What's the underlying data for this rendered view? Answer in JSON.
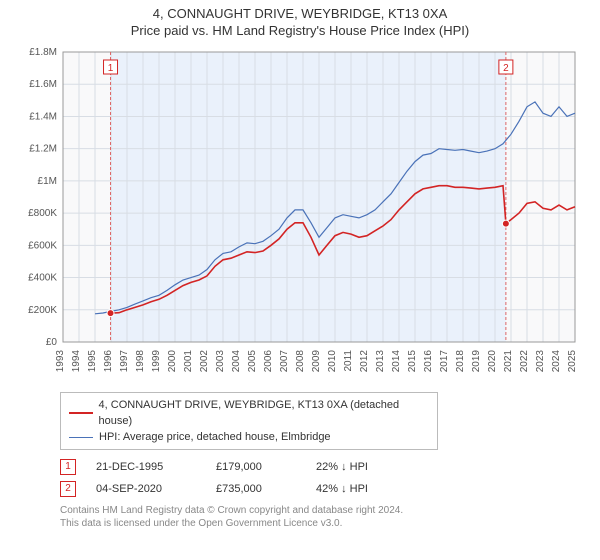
{
  "title_line1": "4, CONNAUGHT DRIVE, WEYBRIDGE, KT13 0XA",
  "title_line2": "Price paid vs. HM Land Registry's House Price Index (HPI)",
  "chart": {
    "type": "line",
    "background_color": "#ffffff",
    "plot_bg_color": "#f9f9fa",
    "grid_color": "#d8dde4",
    "x_label_years": [
      1993,
      1994,
      1995,
      1996,
      1997,
      1998,
      1999,
      2000,
      2001,
      2002,
      2003,
      2004,
      2005,
      2006,
      2007,
      2008,
      2009,
      2010,
      2011,
      2012,
      2013,
      2014,
      2015,
      2016,
      2017,
      2018,
      2019,
      2020,
      2021,
      2022,
      2023,
      2024,
      2025
    ],
    "y_min": 0,
    "y_max": 1800000,
    "y_tick_step": 200000,
    "y_tick_labels": [
      "£0",
      "£200K",
      "£400K",
      "£600K",
      "£800K",
      "£1M",
      "£1.2M",
      "£1.4M",
      "£1.6M",
      "£1.8M"
    ],
    "band": {
      "start_year": 1995.97,
      "end_year": 2020.68,
      "fill": "#eaf1fb"
    },
    "series": [
      {
        "name": "price_paid",
        "label": "4, CONNAUGHT DRIVE, WEYBRIDGE, KT13 0XA (detached house)",
        "color": "#d32424",
        "line_width": 1.6,
        "points": [
          [
            1995.97,
            179000
          ],
          [
            1996.5,
            182000
          ],
          [
            1997,
            200000
          ],
          [
            1997.5,
            215000
          ],
          [
            1998,
            230000
          ],
          [
            1998.5,
            250000
          ],
          [
            1999,
            265000
          ],
          [
            1999.5,
            290000
          ],
          [
            2000,
            320000
          ],
          [
            2000.5,
            350000
          ],
          [
            2001,
            370000
          ],
          [
            2001.5,
            385000
          ],
          [
            2002,
            410000
          ],
          [
            2002.5,
            470000
          ],
          [
            2003,
            510000
          ],
          [
            2003.5,
            520000
          ],
          [
            2004,
            540000
          ],
          [
            2004.5,
            560000
          ],
          [
            2005,
            555000
          ],
          [
            2005.5,
            565000
          ],
          [
            2006,
            600000
          ],
          [
            2006.5,
            640000
          ],
          [
            2007,
            700000
          ],
          [
            2007.5,
            740000
          ],
          [
            2008,
            740000
          ],
          [
            2008.5,
            650000
          ],
          [
            2009,
            540000
          ],
          [
            2009.5,
            600000
          ],
          [
            2010,
            660000
          ],
          [
            2010.5,
            680000
          ],
          [
            2011,
            670000
          ],
          [
            2011.5,
            650000
          ],
          [
            2012,
            660000
          ],
          [
            2012.5,
            690000
          ],
          [
            2013,
            720000
          ],
          [
            2013.5,
            760000
          ],
          [
            2014,
            820000
          ],
          [
            2014.5,
            870000
          ],
          [
            2015,
            920000
          ],
          [
            2015.5,
            950000
          ],
          [
            2016,
            960000
          ],
          [
            2016.5,
            970000
          ],
          [
            2017,
            970000
          ],
          [
            2017.5,
            960000
          ],
          [
            2018,
            960000
          ],
          [
            2018.5,
            955000
          ],
          [
            2019,
            950000
          ],
          [
            2019.5,
            955000
          ],
          [
            2020,
            960000
          ],
          [
            2020.5,
            970000
          ],
          [
            2020.68,
            735000
          ],
          [
            2021,
            760000
          ],
          [
            2021.5,
            800000
          ],
          [
            2022,
            860000
          ],
          [
            2022.5,
            870000
          ],
          [
            2023,
            830000
          ],
          [
            2023.5,
            820000
          ],
          [
            2024,
            850000
          ],
          [
            2024.5,
            820000
          ],
          [
            2025,
            840000
          ]
        ]
      },
      {
        "name": "hpi",
        "label": "HPI: Average price, detached house, Elmbridge",
        "color": "#4a72b8",
        "line_width": 1.2,
        "points": [
          [
            1995,
            175000
          ],
          [
            1995.5,
            180000
          ],
          [
            1996,
            190000
          ],
          [
            1996.5,
            200000
          ],
          [
            1997,
            215000
          ],
          [
            1997.5,
            235000
          ],
          [
            1998,
            255000
          ],
          [
            1998.5,
            275000
          ],
          [
            1999,
            290000
          ],
          [
            1999.5,
            320000
          ],
          [
            2000,
            355000
          ],
          [
            2000.5,
            385000
          ],
          [
            2001,
            400000
          ],
          [
            2001.5,
            415000
          ],
          [
            2002,
            450000
          ],
          [
            2002.5,
            510000
          ],
          [
            2003,
            550000
          ],
          [
            2003.5,
            560000
          ],
          [
            2004,
            590000
          ],
          [
            2004.5,
            615000
          ],
          [
            2005,
            610000
          ],
          [
            2005.5,
            625000
          ],
          [
            2006,
            660000
          ],
          [
            2006.5,
            700000
          ],
          [
            2007,
            770000
          ],
          [
            2007.5,
            820000
          ],
          [
            2008,
            820000
          ],
          [
            2008.5,
            740000
          ],
          [
            2009,
            650000
          ],
          [
            2009.5,
            710000
          ],
          [
            2010,
            770000
          ],
          [
            2010.5,
            790000
          ],
          [
            2011,
            780000
          ],
          [
            2011.5,
            770000
          ],
          [
            2012,
            790000
          ],
          [
            2012.5,
            820000
          ],
          [
            2013,
            870000
          ],
          [
            2013.5,
            920000
          ],
          [
            2014,
            990000
          ],
          [
            2014.5,
            1060000
          ],
          [
            2015,
            1120000
          ],
          [
            2015.5,
            1160000
          ],
          [
            2016,
            1170000
          ],
          [
            2016.5,
            1200000
          ],
          [
            2017,
            1195000
          ],
          [
            2017.5,
            1190000
          ],
          [
            2018,
            1195000
          ],
          [
            2018.5,
            1185000
          ],
          [
            2019,
            1175000
          ],
          [
            2019.5,
            1185000
          ],
          [
            2020,
            1200000
          ],
          [
            2020.5,
            1230000
          ],
          [
            2021,
            1290000
          ],
          [
            2021.5,
            1370000
          ],
          [
            2022,
            1460000
          ],
          [
            2022.5,
            1490000
          ],
          [
            2023,
            1420000
          ],
          [
            2023.5,
            1400000
          ],
          [
            2024,
            1460000
          ],
          [
            2024.5,
            1400000
          ],
          [
            2025,
            1420000
          ]
        ]
      }
    ],
    "markers": [
      {
        "id": "1",
        "year": 1995.97,
        "price": 179000,
        "color": "#d32424",
        "dash_color": "#d66",
        "date_label": "21-DEC-1995",
        "price_label": "£179,000",
        "delta_label": "22% ↓ HPI"
      },
      {
        "id": "2",
        "year": 2020.68,
        "price": 735000,
        "color": "#d32424",
        "dash_color": "#d66",
        "date_label": "04-SEP-2020",
        "price_label": "£735,000",
        "delta_label": "42% ↓ HPI"
      }
    ],
    "axis_font_size": 10,
    "title_font_size": 13
  },
  "legend": {
    "series1_label": "4, CONNAUGHT DRIVE, WEYBRIDGE, KT13 0XA (detached house)",
    "series2_label": "HPI: Average price, detached house, Elmbridge"
  },
  "marker_rows": {
    "row1": {
      "id": "1",
      "date": "21-DEC-1995",
      "price": "£179,000",
      "delta": "22% ↓ HPI"
    },
    "row2": {
      "id": "2",
      "date": "04-SEP-2020",
      "price": "£735,000",
      "delta": "42% ↓ HPI"
    }
  },
  "footnote_line1": "Contains HM Land Registry data © Crown copyright and database right 2024.",
  "footnote_line2": "This data is licensed under the Open Government Licence v3.0.",
  "colors": {
    "red": "#d32424",
    "blue": "#4a72b8",
    "grid": "#d8dde4",
    "band": "#eaf1fb",
    "text": "#333333",
    "muted": "#888888"
  }
}
